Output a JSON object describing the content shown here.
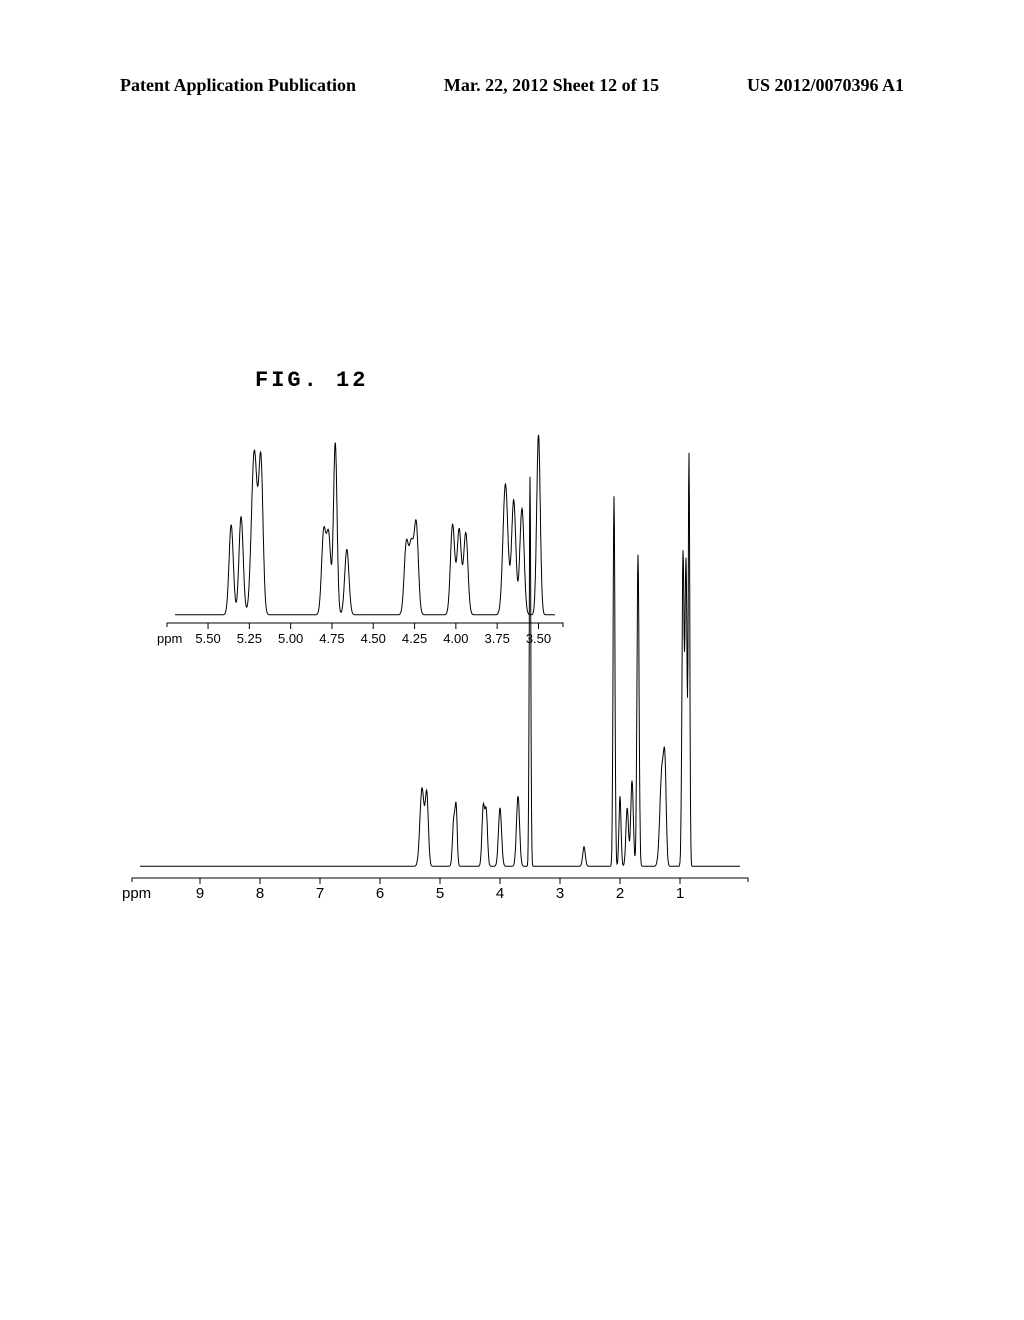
{
  "header": {
    "left": "Patent Application Publication",
    "middle": "Mar. 22, 2012  Sheet 12 of 15",
    "right": "US 2012/0070396 A1"
  },
  "figure_title": "FIG. 12",
  "inset_spectrum": {
    "type": "nmr-line",
    "x_unit_label": "ppm",
    "x_ticks": [
      "5.50",
      "5.25",
      "5.00",
      "4.75",
      "4.50",
      "4.25",
      "4.00",
      "3.75",
      "3.50"
    ],
    "x_range": [
      5.7,
      3.4
    ],
    "baseline_y": 0.05,
    "y_max": 1.0,
    "stroke_color": "#000000",
    "stroke_width": 1.0,
    "background_color": "#ffffff",
    "font_size": 13,
    "peaks": [
      {
        "x": 5.36,
        "h": 0.55,
        "w": 0.03
      },
      {
        "x": 5.3,
        "h": 0.6,
        "w": 0.03
      },
      {
        "x": 5.22,
        "h": 1.0,
        "w": 0.04
      },
      {
        "x": 5.18,
        "h": 0.92,
        "w": 0.03
      },
      {
        "x": 4.8,
        "h": 0.5,
        "w": 0.03
      },
      {
        "x": 4.77,
        "h": 0.48,
        "w": 0.03
      },
      {
        "x": 4.73,
        "h": 1.05,
        "w": 0.025
      },
      {
        "x": 4.66,
        "h": 0.4,
        "w": 0.03
      },
      {
        "x": 4.3,
        "h": 0.43,
        "w": 0.03
      },
      {
        "x": 4.27,
        "h": 0.4,
        "w": 0.03
      },
      {
        "x": 4.24,
        "h": 0.55,
        "w": 0.03
      },
      {
        "x": 4.02,
        "h": 0.55,
        "w": 0.03
      },
      {
        "x": 3.98,
        "h": 0.52,
        "w": 0.03
      },
      {
        "x": 3.94,
        "h": 0.5,
        "w": 0.03
      },
      {
        "x": 3.7,
        "h": 0.8,
        "w": 0.035
      },
      {
        "x": 3.65,
        "h": 0.7,
        "w": 0.03
      },
      {
        "x": 3.6,
        "h": 0.65,
        "w": 0.03
      },
      {
        "x": 3.5,
        "h": 1.1,
        "w": 0.025
      }
    ]
  },
  "main_spectrum": {
    "type": "nmr-line",
    "x_unit_label": "ppm",
    "x_ticks": [
      "9",
      "8",
      "7",
      "6",
      "5",
      "4",
      "3",
      "2",
      "1"
    ],
    "x_range": [
      10.0,
      0.0
    ],
    "baseline_y": 0.03,
    "y_max": 1.0,
    "stroke_color": "#000000",
    "stroke_width": 1.0,
    "background_color": "#ffffff",
    "font_size": 15,
    "peaks": [
      {
        "x": 5.3,
        "h": 0.2,
        "w": 0.08
      },
      {
        "x": 5.22,
        "h": 0.18,
        "w": 0.06
      },
      {
        "x": 4.77,
        "h": 0.12,
        "w": 0.05
      },
      {
        "x": 4.73,
        "h": 0.14,
        "w": 0.04
      },
      {
        "x": 4.28,
        "h": 0.15,
        "w": 0.05
      },
      {
        "x": 4.23,
        "h": 0.14,
        "w": 0.05
      },
      {
        "x": 4.0,
        "h": 0.15,
        "w": 0.06
      },
      {
        "x": 3.7,
        "h": 0.18,
        "w": 0.06
      },
      {
        "x": 3.5,
        "h": 1.0,
        "w": 0.03
      },
      {
        "x": 2.6,
        "h": 0.05,
        "w": 0.05
      },
      {
        "x": 2.1,
        "h": 0.95,
        "w": 0.035
      },
      {
        "x": 2.0,
        "h": 0.18,
        "w": 0.04
      },
      {
        "x": 1.88,
        "h": 0.15,
        "w": 0.05
      },
      {
        "x": 1.8,
        "h": 0.22,
        "w": 0.05
      },
      {
        "x": 1.7,
        "h": 0.8,
        "w": 0.04
      },
      {
        "x": 1.3,
        "h": 0.25,
        "w": 0.08
      },
      {
        "x": 1.25,
        "h": 0.2,
        "w": 0.05
      },
      {
        "x": 0.95,
        "h": 0.8,
        "w": 0.04
      },
      {
        "x": 0.9,
        "h": 0.78,
        "w": 0.04
      },
      {
        "x": 0.85,
        "h": 1.05,
        "w": 0.03
      }
    ]
  }
}
